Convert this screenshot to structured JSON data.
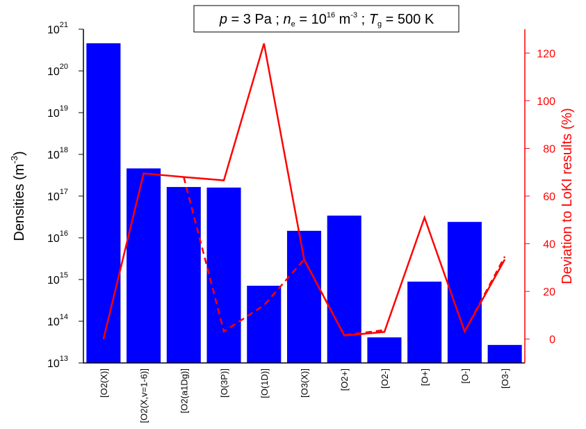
{
  "chart_data": {
    "type": "bar",
    "title": [
      "p",
      " = 3 Pa ; ",
      "n",
      "e",
      " = 10",
      "16",
      " m",
      "-3",
      " ; ",
      "T",
      "g",
      " = 500 K"
    ],
    "y_label": [
      "Densities (m",
      "-3",
      ")"
    ],
    "y2_label": "Deviation to LoKI results (%)",
    "categories": [
      "[O2(X)]",
      "[O2(X,v=1-6)]",
      "[O2(a1Dg)]",
      "[O(3P)]",
      "[O(1D)]",
      "[O3(X)]",
      "[O2+]",
      "[O2-]",
      "[O+]",
      "[O-]",
      "[O3-]"
    ],
    "values": [
      4.6e+20,
      4.6e+17,
      1.65e+17,
      1.6e+17,
      710000000000000.0,
      1.47e+16,
      3.4e+16,
      41000000000000.0,
      890000000000000.0,
      2.4e+16,
      27000000000000.0
    ],
    "color": "#0000ff",
    "yscale": "log",
    "ylim": [
      10000000000000.0,
      1e+21
    ],
    "yticks": [
      {
        "value": 10000000000000.0,
        "label": "10",
        "exponent": "13"
      },
      {
        "value": 100000000000000.0,
        "label": "10",
        "exponent": "14"
      },
      {
        "value": 1000000000000000.0,
        "label": "10",
        "exponent": "15"
      },
      {
        "value": 1e+16,
        "label": "10",
        "exponent": "16"
      },
      {
        "value": 1e+17,
        "label": "10",
        "exponent": "17"
      },
      {
        "value": 1e+18,
        "label": "10",
        "exponent": "18"
      },
      {
        "value": 1e+19,
        "label": "10",
        "exponent": "19"
      },
      {
        "value": 1e+20,
        "label": "10",
        "exponent": "20"
      },
      {
        "value": 1e+21,
        "label": "10",
        "exponent": "21"
      }
    ],
    "y2lim": [
      -10,
      130
    ],
    "y2ticks": [
      0,
      20,
      40,
      60,
      80,
      100,
      120
    ],
    "y2_color": "#ff0000",
    "series": [
      {
        "type": "line",
        "axis": "y2",
        "color": "#ff0000",
        "linestyle": "solid",
        "values": [
          0,
          69.5,
          68,
          66.6,
          124,
          33.4,
          1.5,
          3,
          51,
          3.2,
          33.4
        ]
      },
      {
        "type": "line",
        "axis": "y2",
        "color": "#ff0000",
        "linestyle": "dashed",
        "values": [
          null,
          null,
          68,
          3.2,
          14.2,
          33.4,
          1.7,
          3.8,
          null,
          3.2,
          34.6
        ]
      }
    ]
  }
}
